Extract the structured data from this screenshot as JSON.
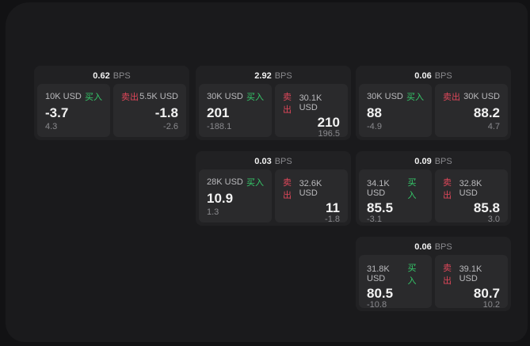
{
  "labels": {
    "buy": "买入",
    "sell": "卖出",
    "bps_unit": "BPS"
  },
  "colors": {
    "page_bg": "#121214",
    "window_bg": "#1a1a1c",
    "card_bg": "#212123",
    "tile_bg": "#2a2a2c",
    "accent_buy": "#35c96a",
    "accent_sell": "#e0475a",
    "text_primary": "#f2f2f2",
    "text_secondary": "#bababd",
    "text_muted": "#8a8a8e"
  },
  "cards": [
    {
      "bps": "0.62",
      "buy": {
        "amount": "10K USD",
        "price": "-3.7",
        "change": "4.3"
      },
      "sell": {
        "amount": "5.5K USD",
        "price": "-1.8",
        "change": "-2.6"
      }
    },
    {
      "bps": "2.92",
      "buy": {
        "amount": "30K USD",
        "price": "201",
        "change": "-188.1"
      },
      "sell": {
        "amount": "30.1K USD",
        "price": "210",
        "change": "196.5"
      }
    },
    {
      "bps": "0.06",
      "buy": {
        "amount": "30K USD",
        "price": "88",
        "change": "-4.9"
      },
      "sell": {
        "amount": "30K USD",
        "price": "88.2",
        "change": "4.7"
      }
    },
    {
      "bps": "0.03",
      "buy": {
        "amount": "28K USD",
        "price": "10.9",
        "change": "1.3"
      },
      "sell": {
        "amount": "32.6K USD",
        "price": "11",
        "change": "-1.8"
      }
    },
    {
      "bps": "0.09",
      "buy": {
        "amount": "34.1K USD",
        "price": "85.5",
        "change": "-3.1"
      },
      "sell": {
        "amount": "32.8K USD",
        "price": "85.8",
        "change": "3.0"
      }
    },
    {
      "bps": "0.06",
      "buy": {
        "amount": "31.8K USD",
        "price": "80.5",
        "change": "-10.8"
      },
      "sell": {
        "amount": "39.1K USD",
        "price": "80.7",
        "change": "10.2"
      }
    }
  ]
}
